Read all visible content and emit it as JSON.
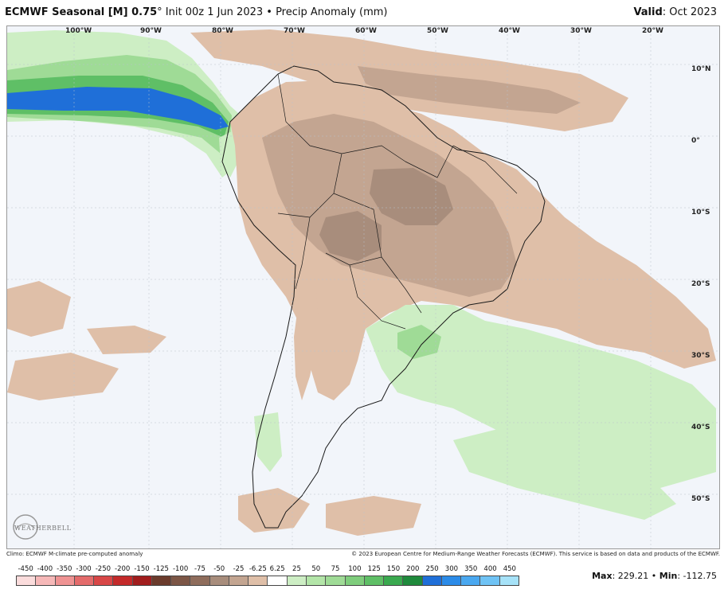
{
  "header": {
    "title_bold": "ECMWF Seasonal [M] 0.75",
    "title_rest": "° Init 00z 1 Jun 2023 • Precip Anomaly (mm)",
    "valid_label": "Valid",
    "valid_value": ": Oct 2023"
  },
  "map": {
    "lon_labels": [
      "100°W",
      "90°W",
      "80°W",
      "70°W",
      "60°W",
      "50°W",
      "40°W",
      "30°W",
      "20°W"
    ],
    "lat_labels": [
      "10°N",
      "0°",
      "10°S",
      "20°S",
      "30°S",
      "40°S",
      "50°S"
    ],
    "colors": {
      "ocean": "#f2f5fa",
      "dry_light": "#dfbfa8",
      "dry_mid": "#c3a591",
      "dry_dark": "#a88d7c",
      "wet_light": "#cdeec4",
      "wet_mid": "#9fdb96",
      "wet_dark": "#5fbf66",
      "wet_blue": "#1f6fd8",
      "border": "#1a1a1a"
    },
    "logo_text": "WEATHERBELL"
  },
  "footer": {
    "climo_note": "Climo: ECMWF M-climate pre-computed anomaly",
    "copyright": "© 2023 European Centre for Medium-Range Weather Forecasts (ECMWF). This service is based on data and products of the ECMWF."
  },
  "legend": {
    "labels": [
      "-450",
      "-400",
      "-350",
      "-300",
      "-250",
      "-200",
      "-150",
      "-125",
      "-100",
      "-75",
      "-50",
      "-25",
      "-6.25",
      "6.25",
      "25",
      "50",
      "75",
      "100",
      "125",
      "150",
      "200",
      "250",
      "300",
      "350",
      "400",
      "450"
    ],
    "colors": [
      "#fbdcdc",
      "#f6b8b8",
      "#ef9393",
      "#e46b6b",
      "#d84747",
      "#c42a2a",
      "#a11d1d",
      "#6b3b2c",
      "#7c5646",
      "#8f6d5c",
      "#a88d7c",
      "#c3a591",
      "#dfbfa8",
      "#ffffff",
      "#cdeec4",
      "#b3e5a8",
      "#9fdb96",
      "#7fcd7c",
      "#5fbf66",
      "#3aa94f",
      "#1f8a3c",
      "#1f6fd8",
      "#2b8be8",
      "#4aa8f0",
      "#6fc3f5",
      "#a6e2f8"
    ]
  },
  "stats": {
    "max_label": "Max",
    "max_value": ": 229.21 • ",
    "min_label": "Min",
    "min_value": ": -112.75"
  }
}
